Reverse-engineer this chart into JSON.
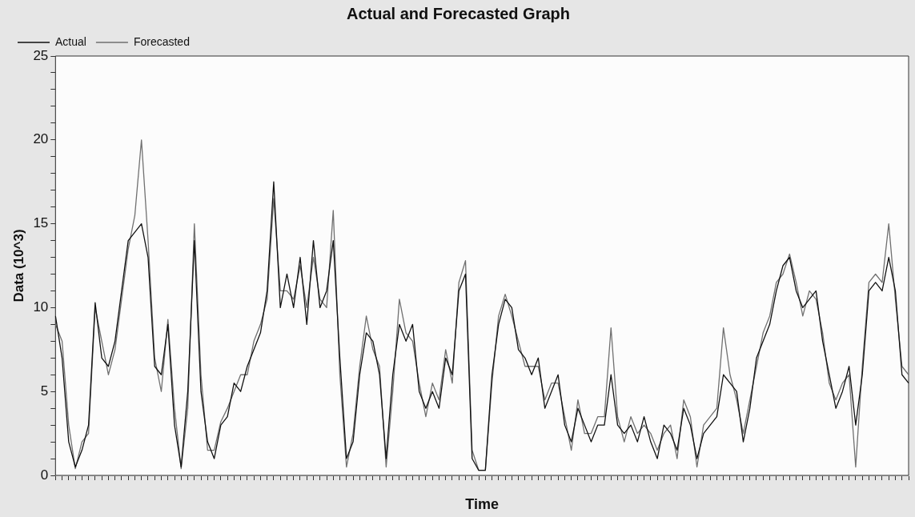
{
  "chart_data": {
    "type": "line",
    "title": "Actual and Forecasted Graph",
    "xlabel": "Time",
    "ylabel": "Data (10^3)",
    "categories": [
      null,
      null,
      null,
      null,
      null,
      null,
      null,
      null,
      null,
      null,
      null,
      null,
      null,
      null,
      null,
      null,
      null,
      null,
      null,
      null,
      null,
      null,
      null,
      null,
      null,
      null,
      null,
      null,
      null,
      null,
      null,
      null,
      null,
      null,
      null,
      null,
      null,
      null,
      null,
      null,
      null,
      null,
      null,
      null,
      null,
      null,
      null,
      null,
      null,
      null,
      null,
      null,
      null,
      null,
      null,
      null,
      null,
      null,
      null,
      null,
      null,
      null,
      null,
      null,
      null,
      null,
      null,
      null,
      null,
      null,
      null,
      null,
      null,
      null,
      null,
      null,
      null,
      null,
      null,
      null,
      null,
      null,
      null,
      null,
      null,
      null,
      null,
      null,
      null,
      null,
      null,
      null,
      null,
      null,
      null,
      null,
      null,
      null,
      null,
      null,
      null,
      null,
      null,
      null,
      null,
      null,
      null,
      null,
      null,
      null,
      null,
      null,
      null,
      null,
      null,
      null,
      null,
      null,
      null,
      null,
      null,
      null,
      null,
      null,
      null,
      null,
      null,
      null,
      null,
      null
    ],
    "series": [
      {
        "name": "Actual",
        "color": "#111111",
        "values": [
          9.5,
          7,
          2,
          0.5,
          1.5,
          3,
          10.3,
          7,
          6.5,
          8,
          11,
          14,
          14.5,
          15,
          13,
          6.5,
          6,
          9,
          3,
          0.5,
          5,
          14,
          5,
          2,
          1,
          3,
          3.5,
          5.5,
          5,
          6.5,
          7.5,
          8.5,
          11,
          17.5,
          10,
          12,
          10,
          13,
          9,
          14,
          10,
          11,
          14,
          7,
          1,
          2,
          6,
          8.5,
          8,
          6,
          1,
          6,
          9,
          8,
          9,
          5,
          4,
          5,
          4,
          7,
          6,
          11,
          12,
          1,
          0.3,
          0.3,
          6,
          9,
          10.5,
          10,
          7.5,
          7,
          6,
          7,
          4,
          5,
          6,
          3,
          2,
          4,
          3,
          2,
          3,
          3,
          6,
          3,
          2.5,
          3,
          2,
          3.5,
          2,
          1,
          3,
          2.5,
          1.5,
          4,
          3,
          1,
          2.5,
          3,
          3.5,
          6,
          5.5,
          5,
          2,
          4,
          7,
          8,
          9,
          11,
          12.5,
          13,
          11,
          10,
          10.5,
          11,
          8,
          6,
          4,
          5,
          6.5,
          3,
          6,
          11,
          11.5,
          11,
          13,
          11,
          6,
          5.5
        ]
      },
      {
        "name": "Forecasted",
        "color": "#707070",
        "values": [
          9,
          8,
          3,
          0.4,
          2,
          2.5,
          10,
          8,
          6,
          7.5,
          10.5,
          13.5,
          15.5,
          20,
          14,
          7,
          5,
          9.3,
          4,
          0.4,
          4,
          15,
          6,
          1.5,
          1.5,
          3.2,
          4,
          5,
          6,
          6,
          8,
          9,
          10.5,
          16.5,
          11,
          11,
          10.5,
          12.5,
          10,
          13,
          10.5,
          10,
          15.8,
          6,
          0.5,
          2.5,
          6.5,
          9.5,
          7.5,
          6.5,
          0.5,
          5,
          10.5,
          8.5,
          8,
          5.5,
          3.5,
          5.5,
          4.5,
          7.5,
          5.5,
          11.5,
          12.8,
          1.5,
          0.3,
          0.3,
          5.5,
          9.5,
          10.8,
          9.5,
          8,
          6.5,
          6.5,
          6.5,
          4.5,
          5.5,
          5.5,
          3.5,
          1.5,
          4.5,
          2.5,
          2.5,
          3.5,
          3.5,
          8.8,
          3.5,
          2,
          3.5,
          2.5,
          3,
          2.5,
          1.5,
          2.5,
          3,
          1,
          4.5,
          3.5,
          0.5,
          3,
          3.5,
          4,
          8.8,
          6,
          4.5,
          2.5,
          4.5,
          6.5,
          8.5,
          9.5,
          11.5,
          12,
          13.2,
          11.5,
          9.5,
          11,
          10.5,
          8.5,
          5.5,
          4.5,
          5.5,
          6,
          0.5,
          6.5,
          11.5,
          12,
          11.5,
          15,
          10.5,
          6.5,
          6
        ]
      }
    ],
    "ylim": [
      0,
      25
    ],
    "yticks": [
      0,
      {
        "value": 1,
        "label": null
      },
      {
        "value": 2,
        "label": null
      },
      {
        "value": 3,
        "label": null
      },
      {
        "value": 4,
        "label": null
      },
      5,
      {
        "value": 6,
        "label": null
      },
      {
        "value": 7,
        "label": null
      },
      {
        "value": 8,
        "label": null
      },
      {
        "value": 9,
        "label": null
      },
      10,
      {
        "value": 11,
        "label": null
      },
      {
        "value": 12,
        "label": null
      },
      {
        "value": 13,
        "label": null
      },
      {
        "value": 14,
        "label": null
      },
      15,
      {
        "value": 16,
        "label": null
      },
      {
        "value": 17,
        "label": null
      },
      {
        "value": 18,
        "label": null
      },
      {
        "value": 19,
        "label": null
      },
      20,
      {
        "value": 21,
        "label": null
      },
      {
        "value": 22,
        "label": null
      },
      {
        "value": 23,
        "label": null
      },
      {
        "value": 24,
        "label": null
      },
      25
    ],
    "grid": false,
    "legend": "top left",
    "marker": "none",
    "line_style": "solid"
  }
}
